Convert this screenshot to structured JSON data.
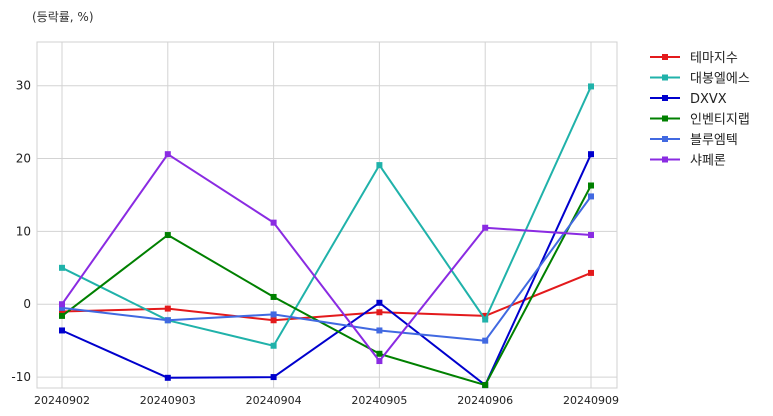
{
  "chart_data": {
    "type": "line",
    "unit_label": "(등락률, %)",
    "x": [
      "20240902",
      "20240903",
      "20240904",
      "20240905",
      "20240906",
      "20240909"
    ],
    "yticks": [
      -10,
      0,
      10,
      20,
      30
    ],
    "ylim": [
      -11.5,
      36
    ],
    "grid": true,
    "legend_position": "outside-right",
    "series": [
      {
        "name": "테마지수",
        "color": "#e31a1c",
        "values": [
          -1.0,
          -0.6,
          -2.2,
          -1.1,
          -1.6,
          4.3
        ]
      },
      {
        "name": "대봉엘에스",
        "color": "#20b2aa",
        "values": [
          5.0,
          -2.2,
          -5.7,
          19.1,
          -2.1,
          29.9
        ]
      },
      {
        "name": "DXVX",
        "color": "#0000cd",
        "values": [
          -3.6,
          -10.1,
          -10.0,
          0.2,
          -11.1,
          20.6
        ]
      },
      {
        "name": "인벤티지랩",
        "color": "#008000",
        "values": [
          -1.6,
          9.5,
          1.0,
          -6.8,
          -11.1,
          16.3
        ]
      },
      {
        "name": "블루엠텍",
        "color": "#4169e1",
        "values": [
          -0.5,
          -2.2,
          -1.4,
          -3.6,
          -5.0,
          14.8
        ]
      },
      {
        "name": "샤페론",
        "color": "#8a2be2",
        "values": [
          0.0,
          20.6,
          11.2,
          -7.8,
          10.5,
          9.5
        ]
      }
    ]
  }
}
